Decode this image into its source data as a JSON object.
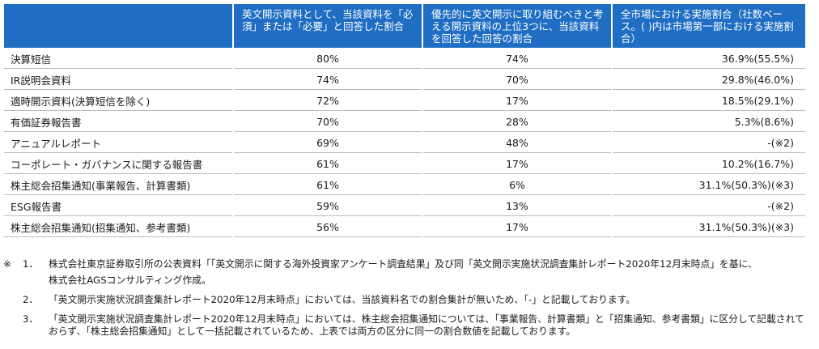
{
  "table": {
    "headers": [
      "",
      "英文開示資料として、当該資料を「必須」または「必要」と回答した割合",
      "優先的に英文開示に取り組むべきと考える開示資料の上位3つに、当該資料を回答した回答の割合",
      "全市場における実施割合（社数ベース。( )内は市場第一部における実施割合）"
    ],
    "rows": [
      [
        "決算短信",
        "80%",
        "74%",
        "36.9%(55.5%)"
      ],
      [
        "IR説明会資料",
        "74%",
        "70%",
        "29.8%(46.0%)"
      ],
      [
        "適時開示資料(決算短信を除く)",
        "72%",
        "17%",
        "18.5%(29.1%)"
      ],
      [
        "有価証券報告書",
        "70%",
        "28%",
        "5.3%(8.6%)"
      ],
      [
        "アニュアルレポート",
        "69%",
        "48%",
        "-(※2)"
      ],
      [
        "コーポレート・ガバナンスに関する報告書",
        "61%",
        "17%",
        "10.2%(16.7%)"
      ],
      [
        "株主総会招集通知(事業報告、計算書類)",
        "61%",
        "6%",
        "31.1%(50.3%)(※3)"
      ],
      [
        "ESG報告書",
        "59%",
        "13%",
        "-(※2)"
      ],
      [
        "株主総会招集通知(招集通知、参考書類)",
        "56%",
        "17%",
        "31.1%(50.3%)(※3)"
      ]
    ]
  },
  "notes": {
    "mark": "※",
    "items": [
      {
        "num": "1．",
        "text": "株式会社東京証券取引所の公表資料「「英文開示に関する海外投資家アンケート調査結果」及び同「英文開示実施状況調査集計レポート2020年12月末時点」を基に、",
        "cont": "株式会社AGSコンサルティング作成。"
      },
      {
        "num": "2．",
        "text": "「英文開示実施状況調査集計レポート2020年12月末時点」においては、当該資料名での割合集計が無いため、「-」と記載しております。"
      },
      {
        "num": "3．",
        "text": "「英文開示実施状況調査集計レポート2020年12月末時点」においては、株主総会招集通知については、「事業報告、計算書類」と「招集通知、参考書類」に区分して記載されておらず、「株主総会招集通知」として一括記載されているため、上表では両方の区分に同一の割合数値を記載しております。"
      }
    ]
  }
}
